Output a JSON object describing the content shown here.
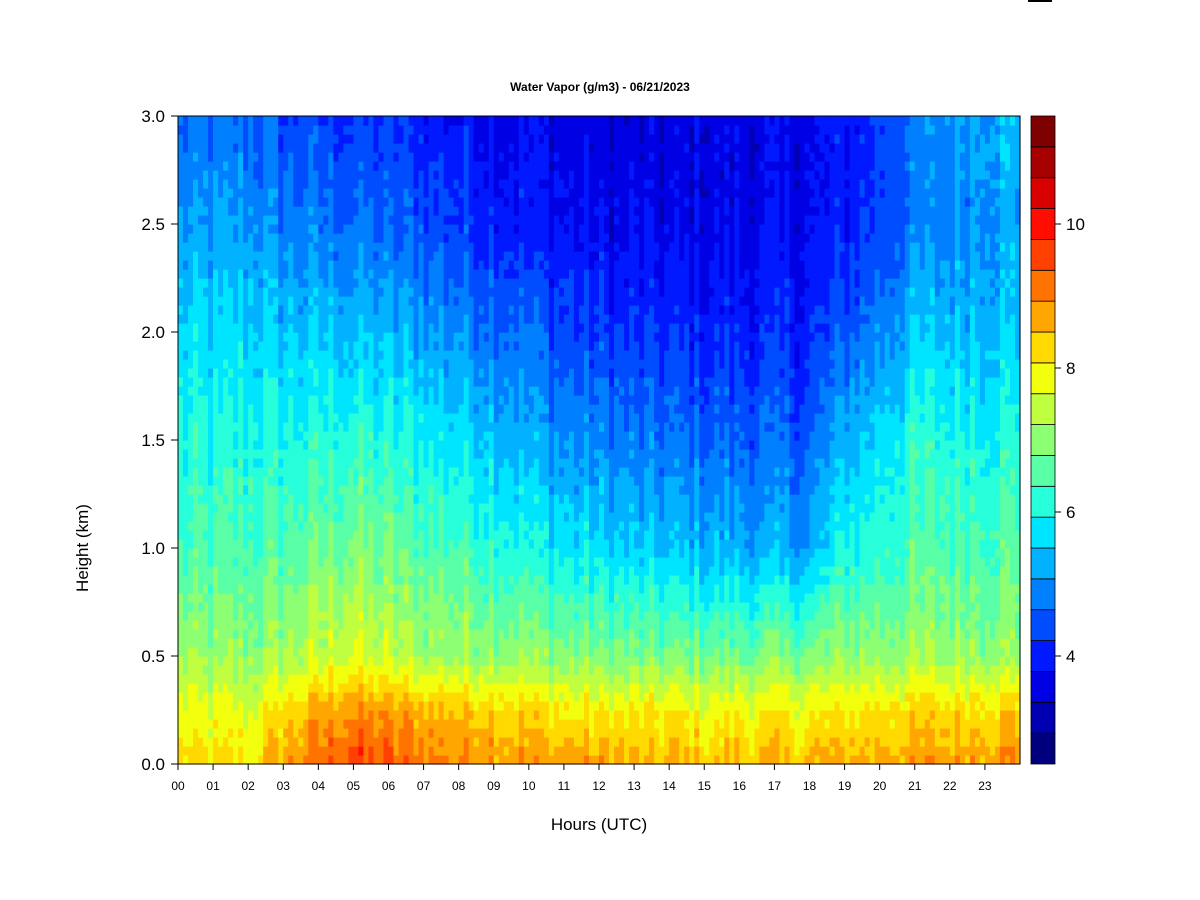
{
  "chart_data": {
    "type": "heatmap",
    "title": "Water Vapor (g/m3) - 06/21/2023",
    "xlabel": "Hours (UTC)",
    "ylabel": "Height (km)",
    "xlim": [
      0,
      24
    ],
    "ylim": [
      0.0,
      3.0
    ],
    "x_ticks": [
      "00",
      "01",
      "02",
      "03",
      "04",
      "05",
      "06",
      "07",
      "08",
      "09",
      "10",
      "11",
      "12",
      "13",
      "14",
      "15",
      "16",
      "17",
      "18",
      "19",
      "20",
      "21",
      "22",
      "23"
    ],
    "y_ticks": [
      "0.0",
      "0.5",
      "1.0",
      "1.5",
      "2.0",
      "2.5",
      "3.0"
    ],
    "heights_km": [
      0.0,
      0.25,
      0.5,
      1.0,
      1.5,
      2.0,
      2.5,
      3.0
    ],
    "profiles": [
      {
        "hour": 0,
        "values": [
          9.2,
          8.6,
          7.8,
          7.0,
          6.6,
          6.1,
          5.4,
          4.9
        ]
      },
      {
        "hour": 2,
        "values": [
          9.0,
          8.5,
          7.8,
          7.1,
          6.6,
          6.1,
          5.6,
          5.0
        ]
      },
      {
        "hour": 3,
        "values": [
          9.8,
          9.2,
          8.0,
          7.2,
          6.6,
          6.0,
          5.2,
          4.6
        ]
      },
      {
        "hour": 5,
        "values": [
          10.8,
          10.0,
          8.5,
          7.6,
          6.8,
          5.9,
          5.1,
          4.5
        ]
      },
      {
        "hour": 7,
        "values": [
          10.2,
          9.6,
          8.0,
          7.2,
          6.5,
          5.6,
          4.8,
          4.3
        ]
      },
      {
        "hour": 9,
        "values": [
          10.0,
          9.4,
          7.9,
          6.9,
          6.1,
          5.2,
          4.4,
          4.0
        ]
      },
      {
        "hour": 11,
        "values": [
          9.8,
          9.0,
          7.7,
          6.3,
          5.4,
          4.7,
          4.0,
          3.8
        ]
      },
      {
        "hour": 13,
        "values": [
          9.6,
          8.9,
          7.6,
          6.0,
          5.2,
          4.4,
          3.8,
          3.6
        ]
      },
      {
        "hour": 15,
        "values": [
          9.5,
          8.8,
          7.5,
          5.8,
          5.0,
          4.3,
          3.8,
          3.7
        ]
      },
      {
        "hour": 18,
        "values": [
          9.5,
          8.9,
          7.6,
          5.6,
          4.9,
          4.3,
          3.9,
          3.8
        ]
      },
      {
        "hour": 19,
        "values": [
          9.6,
          9.0,
          7.8,
          6.6,
          5.8,
          4.8,
          4.2,
          4.1
        ]
      },
      {
        "hour": 21,
        "values": [
          9.8,
          9.2,
          7.9,
          7.1,
          6.7,
          5.9,
          5.1,
          5.1
        ]
      },
      {
        "hour": 23,
        "values": [
          10.0,
          9.3,
          7.9,
          7.2,
          6.7,
          6.0,
          5.6,
          5.8
        ]
      },
      {
        "hour": 24,
        "values": [
          10.0,
          9.3,
          7.9,
          7.2,
          6.7,
          6.0,
          5.7,
          5.9
        ]
      }
    ],
    "colorbar": {
      "min": 2.5,
      "max": 11.5,
      "step": 0.5,
      "tick_labels": [
        "4",
        "6",
        "8",
        "10"
      ],
      "tick_values": [
        4,
        6,
        8,
        10
      ],
      "colors": [
        "#00007f",
        "#0000b2",
        "#0000e5",
        "#0019ff",
        "#004cff",
        "#0080ff",
        "#00b2ff",
        "#00e5ff",
        "#26ffd9",
        "#59ffa6",
        "#8cff73",
        "#bfff40",
        "#f2ff0d",
        "#ffd900",
        "#ffa600",
        "#ff7300",
        "#ff4000",
        "#ff0d00",
        "#d90000",
        "#a60000",
        "#7f0000"
      ]
    },
    "grid": false,
    "legend": "right"
  }
}
